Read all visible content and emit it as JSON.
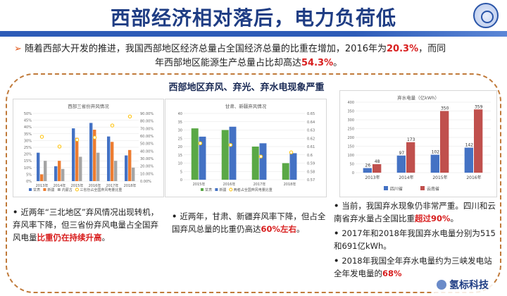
{
  "header": {
    "title": "西部经济相对落后，电力负荷低"
  },
  "intro": {
    "text_a": "随着西部大开发的推进，我国西部地区经济总量占全国经济总量的比重在增加，2016年为",
    "pct_a": "20.3%",
    "text_b": "，而同",
    "text_c": "年西部地区能源生产总量占比却高达",
    "pct_b": "54.3%",
    "text_d": "。"
  },
  "section": {
    "title": "西部地区弃风、弃光、弃水电现象严重"
  },
  "charts": {
    "wind": {
      "title": "西部三省份弃风情况"
    },
    "solar": {
      "title": "甘肃、新疆弃风情况"
    },
    "hydro": {
      "title": "弃水电量（亿kWh）"
    }
  },
  "chart_data": [
    {
      "type": "bar",
      "title": "西部三省份弃风情况",
      "categories": [
        "2013年",
        "2014年",
        "2015年",
        "2016年",
        "2017年",
        "2018年"
      ],
      "series": [
        {
          "name": "甘肃",
          "values": [
            21,
            11,
            39,
            43,
            33,
            19
          ]
        },
        {
          "name": "新疆",
          "values": [
            5,
            15,
            32,
            38,
            29,
            23
          ]
        },
        {
          "name": "内蒙古",
          "values": [
            15,
            9,
            18,
            21,
            15,
            10
          ]
        }
      ],
      "overlay": {
        "name": "三省份占全国弃风电量比重",
        "values": [
          0.59,
          0.46,
          0.55,
          0.58,
          0.74,
          0.86
        ]
      },
      "y_left_ticks": [
        "0%",
        "5%",
        "10%",
        "15%",
        "20%",
        "25%",
        "30%",
        "35%",
        "40%",
        "45%",
        "50%"
      ],
      "y_right_ticks": [
        "0.00%",
        "10.00%",
        "20.00%",
        "30.00%",
        "40.00%",
        "50.00%",
        "60.00%",
        "70.00%",
        "80.00%",
        "90.00%"
      ],
      "ylim": [
        0,
        50
      ],
      "legend": "bottom"
    },
    {
      "type": "bar",
      "title": "甘肃、新疆弃风情况",
      "categories": [
        "2015年",
        "2016年",
        "2017年",
        "2018年"
      ],
      "series": [
        {
          "name": "甘肃",
          "values": [
            31,
            30,
            20,
            10
          ]
        },
        {
          "name": "新疆",
          "values": [
            26,
            32,
            22,
            16
          ]
        }
      ],
      "overlay": {
        "name": "两者占全国弃风电量比重",
        "values": [
          0.614,
          0.612,
          0.598,
          0.603
        ]
      },
      "y_left_ticks": [
        "0",
        "5",
        "10",
        "15",
        "20",
        "25",
        "30",
        "35",
        "40"
      ],
      "y_right_ticks": [
        "0.57",
        "0.58",
        "0.59",
        "0.6",
        "0.61",
        "0.62",
        "0.63",
        "0.64",
        "0.65"
      ],
      "ylim": [
        0,
        40
      ],
      "legend": "bottom"
    },
    {
      "type": "bar",
      "title": "弃水电量（亿kWh）",
      "categories": [
        "2013年",
        "2014年",
        "2015年",
        "2016年"
      ],
      "series": [
        {
          "name": "四川省",
          "values": [
            26,
            97,
            102,
            142
          ]
        },
        {
          "name": "云南省",
          "values": [
            48,
            173,
            350,
            359
          ]
        }
      ],
      "y_ticks": [
        "0",
        "50",
        "100",
        "150",
        "200",
        "250",
        "300",
        "350",
        "400"
      ],
      "ylim": [
        0,
        400
      ],
      "legend": "bottom"
    }
  ],
  "bullets": {
    "b1": {
      "text_a": "近两年“三北地区”弃风情况出现转机，弃风率下降，但三省份弃风电量占全国弃风电量",
      "red": "比重仍在持续升高",
      "text_b": "。"
    },
    "b2": {
      "text_a": "近两年，甘肃、新疆弃风率下降，但占全国弃风总量的比重仍高达",
      "red": "60%左右",
      "text_b": "。"
    },
    "b3a": {
      "text_a": "当前，我国弃水现象仍非常严重。四川和云南省弃水量占全国比重",
      "red": "超过90%",
      "text_b": "。"
    },
    "b3b": {
      "text_a": "2017年和2018年我国弃水电量分别为515和691亿kWh。"
    },
    "b3c": {
      "text_a": "2018年我国全年弃水电量约为三峡发电站全年发电量的",
      "red": "68%"
    }
  },
  "watermark": {
    "text": "氢标科技"
  },
  "colors": {
    "title": "#1f3d84",
    "rule": "#2e5cb8",
    "highlight": "#d81e1e",
    "frame": "#c07a3a",
    "s_gansu_wind": "#4472c4",
    "s_xinjiang_wind": "#ed7d31",
    "s_neimeng": "#a5a5a5",
    "s_gansu2": "#5aa846",
    "s_xinjiang2": "#4472c4",
    "s_sichuan": "#4472c4",
    "s_yunnan": "#c0504d",
    "overlay_dot": "#ffc000"
  }
}
